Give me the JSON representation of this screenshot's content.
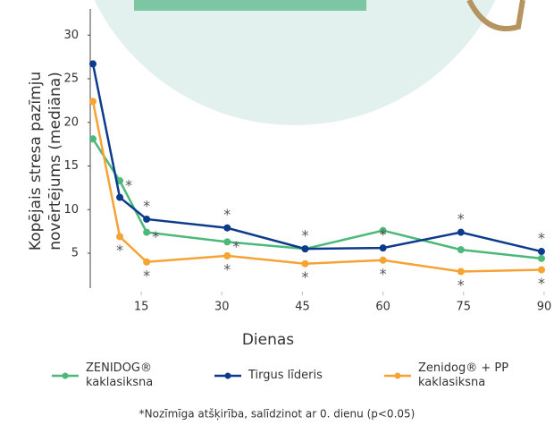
{
  "chart_data": {
    "type": "line",
    "ylabel": [
      "Kopējais stresa pazīmju",
      "novērtējums (mediāna)"
    ],
    "xlabel": "Dienas",
    "x": [
      6,
      11,
      16,
      31,
      45.5,
      60,
      74.5,
      89.5
    ],
    "xlim": [
      5.5,
      91
    ],
    "xticks": [
      15,
      30,
      45,
      60,
      75,
      90
    ],
    "ylim": [
      1,
      33
    ],
    "yticks": [
      5,
      10,
      15,
      20,
      25,
      30
    ],
    "significance_marker": "*",
    "series": [
      {
        "name": "ZENIDOG® kaklasiksna",
        "color": "#4cb87a",
        "values": [
          18.1,
          13.3,
          7.4,
          6.3,
          5.5,
          7.6,
          5.4,
          4.4
        ],
        "significant": [
          false,
          true,
          true,
          true,
          false,
          false,
          false,
          false
        ]
      },
      {
        "name": "Tirgus līderis",
        "color": "#0d3b8c",
        "values": [
          26.7,
          11.4,
          8.9,
          7.9,
          5.5,
          5.6,
          7.4,
          5.2
        ],
        "significant": [
          false,
          false,
          true,
          true,
          true,
          true,
          true,
          true
        ]
      },
      {
        "name": "Zenidog® + PP kaklasiksna",
        "color": "#f7a234",
        "values": [
          22.4,
          6.9,
          4.0,
          4.7,
          3.8,
          4.2,
          2.9,
          3.1
        ],
        "significant": [
          false,
          true,
          true,
          true,
          true,
          true,
          true,
          true
        ]
      }
    ],
    "footnote": "*Nozīmīga atšķirība, salīdzinot ar 0. dienu (p<0.05)"
  }
}
